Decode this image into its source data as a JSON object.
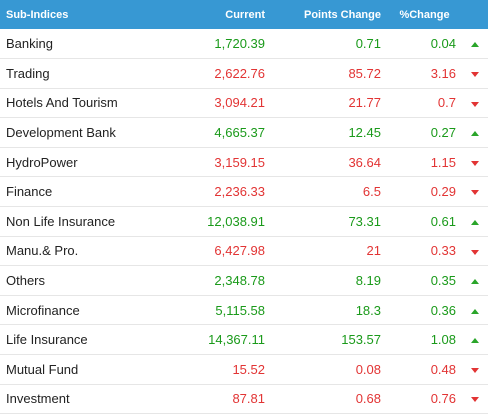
{
  "headers": {
    "name": "Sub-Indices",
    "current": "Current",
    "points_change": "Points Change",
    "percent_change": "%Change"
  },
  "rows": [
    {
      "name": "Banking",
      "current": "1,720.39",
      "points_change": "0.71",
      "percent_change": "0.04",
      "direction": "up"
    },
    {
      "name": "Trading",
      "current": "2,622.76",
      "points_change": "85.72",
      "percent_change": "3.16",
      "direction": "down"
    },
    {
      "name": "Hotels And Tourism",
      "current": "3,094.21",
      "points_change": "21.77",
      "percent_change": "0.7",
      "direction": "down"
    },
    {
      "name": "Development Bank",
      "current": "4,665.37",
      "points_change": "12.45",
      "percent_change": "0.27",
      "direction": "up"
    },
    {
      "name": "HydroPower",
      "current": "3,159.15",
      "points_change": "36.64",
      "percent_change": "1.15",
      "direction": "down"
    },
    {
      "name": "Finance",
      "current": "2,236.33",
      "points_change": "6.5",
      "percent_change": "0.29",
      "direction": "down"
    },
    {
      "name": "Non Life Insurance",
      "current": "12,038.91",
      "points_change": "73.31",
      "percent_change": "0.61",
      "direction": "up"
    },
    {
      "name": "Manu.& Pro.",
      "current": "6,427.98",
      "points_change": "21",
      "percent_change": "0.33",
      "direction": "down"
    },
    {
      "name": "Others",
      "current": "2,348.78",
      "points_change": "8.19",
      "percent_change": "0.35",
      "direction": "up"
    },
    {
      "name": "Microfinance",
      "current": "5,115.58",
      "points_change": "18.3",
      "percent_change": "0.36",
      "direction": "up"
    },
    {
      "name": "Life Insurance",
      "current": "14,367.11",
      "points_change": "153.57",
      "percent_change": "1.08",
      "direction": "up"
    },
    {
      "name": "Mutual Fund",
      "current": "15.52",
      "points_change": "0.08",
      "percent_change": "0.48",
      "direction": "down"
    },
    {
      "name": "Investment",
      "current": "87.81",
      "points_change": "0.68",
      "percent_change": "0.76",
      "direction": "down"
    }
  ],
  "colors": {
    "header_bg": "#3798d3",
    "up": "#1a9a1a",
    "down": "#e23434"
  },
  "icons": {
    "up": "triangle-up-icon",
    "down": "triangle-down-icon"
  }
}
